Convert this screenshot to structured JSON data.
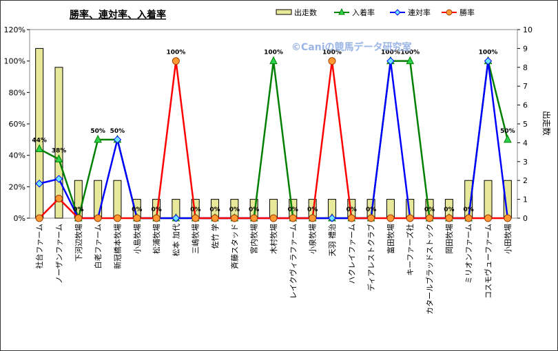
{
  "chart_data": {
    "type": "bar",
    "title": "勝率、連対率、入着率",
    "watermark": "©Caniの競馬データ研究室",
    "xlabel": "",
    "ylabel_left": "",
    "ylabel_right": "出走数",
    "ylim_left": [
      0,
      1.2
    ],
    "ylim_right": [
      0,
      10
    ],
    "left_ticks": [
      "0%",
      "20%",
      "40%",
      "60%",
      "80%",
      "100%",
      "120%"
    ],
    "right_ticks": [
      "0",
      "1",
      "2",
      "3",
      "4",
      "5",
      "6",
      "7",
      "8",
      "9",
      "10"
    ],
    "grid": false,
    "legend_position": "top-right",
    "categories": [
      "社台ファーム",
      "ノーザンファーム",
      "下河辺牧場",
      "白老ファーム",
      "新冠橋本牧場",
      "小島牧場",
      "松浦牧場",
      "松本 加代",
      "三嶋牧場",
      "佐竹 学",
      "斉藤スタッド",
      "宮内牧場",
      "木村牧場",
      "レイクヴィラファーム",
      "小泉牧場",
      "天羽 禮治",
      "ハクレイファーム",
      "ディアレストクラブ",
      "富田牧場",
      "キーファーズ社",
      "カタールブラッドストック",
      "岡田牧場",
      "ミリオンファーム",
      "コスモヴューファーム",
      "小田牧場"
    ],
    "series": [
      {
        "name": "出走数",
        "kind": "bar",
        "axis": "right",
        "color": "#e8e89a",
        "values": [
          9,
          8,
          2,
          2,
          2,
          1,
          1,
          1,
          1,
          1,
          1,
          1,
          1,
          1,
          1,
          1,
          1,
          1,
          1,
          1,
          1,
          1,
          2,
          2,
          2
        ]
      },
      {
        "name": "入着率",
        "kind": "line",
        "axis": "left",
        "color": "#008000",
        "marker": "triangle",
        "values": [
          0.44,
          0.375,
          0,
          0.5,
          0.5,
          0,
          0,
          0,
          0,
          0,
          0,
          0,
          1,
          0,
          0,
          0,
          0,
          0,
          1,
          1,
          0,
          0,
          0,
          1,
          0.5
        ]
      },
      {
        "name": "連対率",
        "kind": "line",
        "axis": "left",
        "color": "#0000ff",
        "marker": "diamond",
        "values": [
          0.22,
          0.25,
          0,
          0,
          0.5,
          0,
          0,
          0,
          0,
          0,
          0,
          0,
          0,
          0,
          0,
          0,
          0,
          0,
          1,
          0,
          0,
          0,
          0,
          1,
          0
        ]
      },
      {
        "name": "勝率",
        "kind": "line",
        "axis": "left",
        "color": "#ff0000",
        "marker": "circle",
        "values": [
          0,
          0.125,
          0,
          0,
          0,
          0,
          0,
          1,
          0,
          0,
          0,
          0,
          0,
          0,
          0,
          1,
          0,
          0,
          0,
          0,
          0,
          0,
          0,
          0,
          0
        ]
      }
    ],
    "data_labels": [
      {
        "index": 0,
        "series": "入着率",
        "text": "44%"
      },
      {
        "index": 1,
        "series": "入着率",
        "text": "38%"
      },
      {
        "index": 2,
        "series": "入着率",
        "text": "0%"
      },
      {
        "index": 3,
        "series": "入着率",
        "text": "50%"
      },
      {
        "index": 4,
        "series": "入着率",
        "text": "50%"
      },
      {
        "index": 5,
        "series": "入着率",
        "text": "0%"
      },
      {
        "index": 6,
        "series": "入着率",
        "text": "0%"
      },
      {
        "index": 7,
        "series": "勝率",
        "text": "100%"
      },
      {
        "index": 8,
        "series": "入着率",
        "text": "0%"
      },
      {
        "index": 9,
        "series": "入着率",
        "text": "0%"
      },
      {
        "index": 10,
        "series": "入着率",
        "text": "0%"
      },
      {
        "index": 11,
        "series": "入着率",
        "text": "0%"
      },
      {
        "index": 12,
        "series": "入着率",
        "text": "100%"
      },
      {
        "index": 13,
        "series": "入着率",
        "text": "0%"
      },
      {
        "index": 14,
        "series": "入着率",
        "text": "0%"
      },
      {
        "index": 15,
        "series": "勝率",
        "text": "100%"
      },
      {
        "index": 16,
        "series": "入着率",
        "text": "0%"
      },
      {
        "index": 17,
        "series": "入着率",
        "text": "0%"
      },
      {
        "index": 18,
        "series": "入着率",
        "text": "100%"
      },
      {
        "index": 19,
        "series": "入着率",
        "text": "100%"
      },
      {
        "index": 20,
        "series": "入着率",
        "text": "0%"
      },
      {
        "index": 21,
        "series": "入着率",
        "text": "0%"
      },
      {
        "index": 22,
        "series": "入着率",
        "text": "0%"
      },
      {
        "index": 23,
        "series": "入着率",
        "text": "100%"
      },
      {
        "index": 24,
        "series": "入着率",
        "text": "50%"
      }
    ]
  }
}
